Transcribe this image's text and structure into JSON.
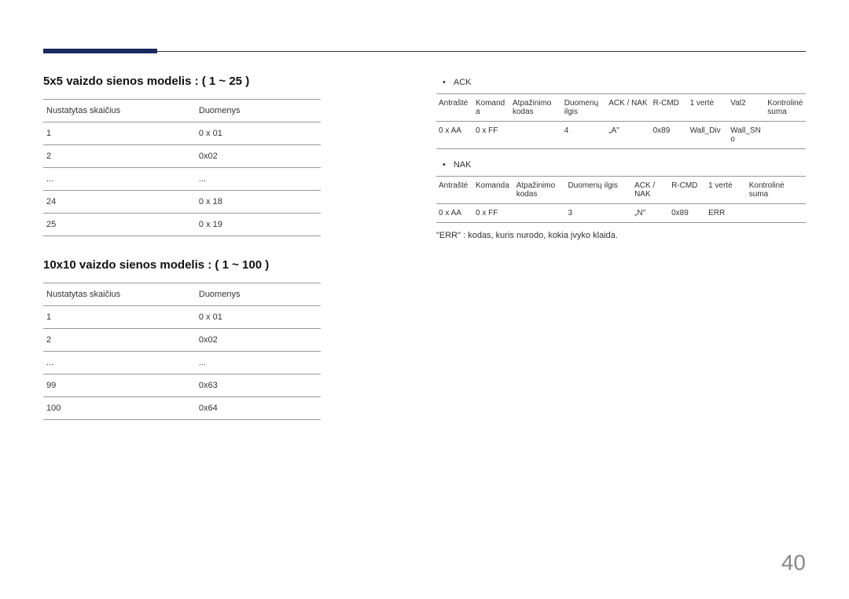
{
  "pageNumber": "40",
  "colors": {
    "accent": "#1a2a5c",
    "rule": "#333333",
    "border": "#999999",
    "text": "#333333",
    "pageNum": "#888888",
    "background": "#ffffff"
  },
  "left": {
    "section1": {
      "title": "5x5 vaizdo sienos modelis : ( 1 ~ 25 )",
      "header": {
        "c1": "Nustatytas skaičius",
        "c2": "Duomenys"
      },
      "rows": [
        {
          "c1": "1",
          "c2": "0 x 01",
          "bold": true
        },
        {
          "c1": "2",
          "c2": "0x02",
          "bold": true
        },
        {
          "c1": "...",
          "c2": "...",
          "bold": true
        },
        {
          "c1": "24",
          "c2": "0 x 18",
          "bold": true
        },
        {
          "c1": "25",
          "c2": "0 x 19",
          "bold": true
        }
      ]
    },
    "section2": {
      "title": "10x10 vaizdo sienos modelis : ( 1 ~ 100 )",
      "header": {
        "c1": "Nustatytas skaičius",
        "c2": "Duomenys"
      },
      "rows": [
        {
          "c1": "1",
          "c2": "0 x 01"
        },
        {
          "c1": "2",
          "c2": "0x02"
        },
        {
          "c1": "...",
          "c2": "..."
        },
        {
          "c1": "99",
          "c2": "0x63"
        },
        {
          "c1": "100",
          "c2": "0x64"
        }
      ]
    }
  },
  "right": {
    "ack": {
      "label": "ACK",
      "colWidths": [
        "10%",
        "10%",
        "14%",
        "12%",
        "12%",
        "10%",
        "11%",
        "10%",
        "11%"
      ],
      "headers": [
        "Antraštė",
        "Komanda",
        "Atpažinimo kodas",
        "Duomenų ilgis",
        "ACK / NAK",
        "R-CMD",
        "1 vertė",
        "Val2",
        "Kontrolinė suma"
      ],
      "row": [
        "0 x AA",
        "0 x FF",
        "",
        "4",
        "„A\"",
        "0x89",
        "Wall_Div",
        "Wall_SNo",
        ""
      ]
    },
    "nak": {
      "label": "NAK",
      "colWidths": [
        "10%",
        "11%",
        "14%",
        "18%",
        "10%",
        "10%",
        "11%",
        "16%"
      ],
      "headers": [
        "Antraštė",
        "Komanda",
        "Atpažinimo kodas",
        "Duomenų ilgis",
        "ACK / NAK",
        "R-CMD",
        "1 vertė",
        "Kontrolinė suma"
      ],
      "row": [
        "0 x AA",
        "0 x FF",
        "",
        "3",
        "„N\"",
        "0x89",
        "ERR",
        ""
      ]
    },
    "footnote": "\"ERR\" : kodas, kuris nurodo, kokia įvyko klaida."
  }
}
